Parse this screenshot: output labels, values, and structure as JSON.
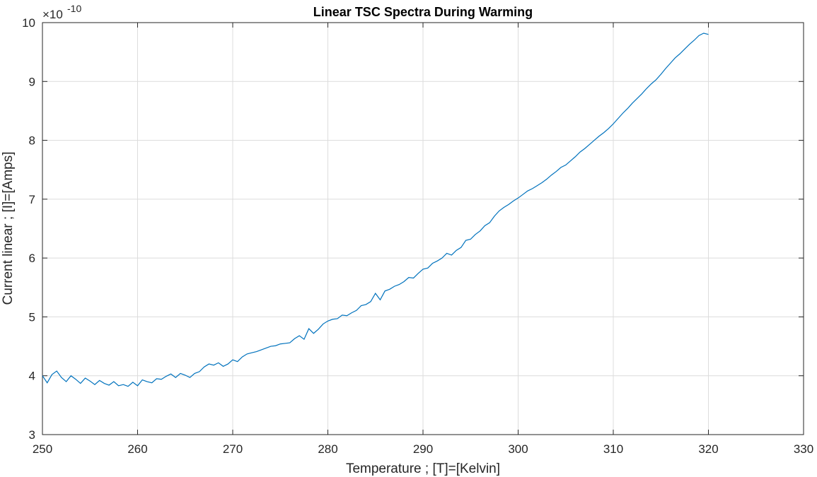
{
  "chart_data": {
    "type": "line",
    "title": "Linear TSC Spectra During Warming",
    "xlabel": "Temperature ; [T]=[Kelvin]",
    "ylabel": "Current linear ; [I]=[Amps]",
    "exponent_base": "×10",
    "exponent_power": "-10",
    "xlim": [
      250,
      330
    ],
    "ylim": [
      3,
      10
    ],
    "xticks": [
      "250",
      "260",
      "270",
      "280",
      "290",
      "300",
      "310",
      "320",
      "330"
    ],
    "yticks": [
      "3",
      "4",
      "5",
      "6",
      "7",
      "8",
      "9",
      "10"
    ],
    "grid": true,
    "line_color": "#0072BD",
    "series": [
      {
        "x": [
          250.0,
          250.5,
          251.0,
          251.5,
          252.0,
          252.5,
          253.0,
          253.5,
          254.0,
          254.5,
          255.0,
          255.5,
          256.0,
          256.5,
          257.0,
          257.5,
          258.0,
          258.5,
          259.0,
          259.5,
          260.0,
          260.5,
          261.0,
          261.5,
          262.0,
          262.5,
          263.0,
          263.5,
          264.0,
          264.5,
          265.0,
          265.5,
          266.0,
          266.5,
          267.0,
          267.5,
          268.0,
          268.5,
          269.0,
          269.5,
          270.0,
          270.5,
          271.0,
          271.5,
          272.0,
          272.5,
          273.0,
          273.5,
          274.0,
          274.5,
          275.0,
          275.5,
          276.0,
          276.5,
          277.0,
          277.5,
          278.0,
          278.5,
          279.0,
          279.5,
          280.0,
          280.5,
          281.0,
          281.5,
          282.0,
          282.5,
          283.0,
          283.5,
          284.0,
          284.5,
          285.0,
          285.5,
          286.0,
          286.5,
          287.0,
          287.5,
          288.0,
          288.5,
          289.0,
          289.5,
          290.0,
          290.5,
          291.0,
          291.5,
          292.0,
          292.5,
          293.0,
          293.5,
          294.0,
          294.5,
          295.0,
          295.5,
          296.0,
          296.5,
          297.0,
          297.5,
          298.0,
          298.5,
          299.0,
          299.5,
          300.0,
          300.5,
          301.0,
          301.5,
          302.0,
          302.5,
          303.0,
          303.5,
          304.0,
          304.5,
          305.0,
          305.5,
          306.0,
          306.5,
          307.0,
          307.5,
          308.0,
          308.5,
          309.0,
          309.5,
          310.0,
          310.5,
          311.0,
          311.5,
          312.0,
          312.5,
          313.0,
          313.5,
          314.0,
          314.5,
          315.0,
          315.5,
          316.0,
          316.5,
          317.0,
          317.5,
          318.0,
          318.5,
          319.0,
          319.5,
          320.0
        ],
        "y": [
          4.0,
          3.88,
          4.02,
          4.08,
          3.97,
          3.9,
          4.0,
          3.94,
          3.87,
          3.96,
          3.91,
          3.85,
          3.92,
          3.87,
          3.84,
          3.9,
          3.83,
          3.85,
          3.82,
          3.89,
          3.83,
          3.93,
          3.9,
          3.88,
          3.95,
          3.94,
          3.99,
          4.03,
          3.97,
          4.04,
          4.01,
          3.97,
          4.04,
          4.07,
          4.15,
          4.2,
          4.18,
          4.22,
          4.16,
          4.2,
          4.27,
          4.24,
          4.32,
          4.37,
          4.39,
          4.41,
          4.44,
          4.47,
          4.5,
          4.51,
          4.54,
          4.55,
          4.56,
          4.63,
          4.68,
          4.62,
          4.8,
          4.72,
          4.79,
          4.88,
          4.93,
          4.96,
          4.97,
          5.03,
          5.02,
          5.07,
          5.11,
          5.19,
          5.21,
          5.26,
          5.4,
          5.29,
          5.44,
          5.47,
          5.52,
          5.55,
          5.6,
          5.67,
          5.66,
          5.74,
          5.81,
          5.83,
          5.91,
          5.95,
          6.0,
          6.08,
          6.05,
          6.13,
          6.18,
          6.3,
          6.32,
          6.4,
          6.46,
          6.55,
          6.6,
          6.71,
          6.8,
          6.86,
          6.91,
          6.97,
          7.02,
          7.08,
          7.14,
          7.18,
          7.23,
          7.28,
          7.34,
          7.41,
          7.47,
          7.54,
          7.58,
          7.65,
          7.72,
          7.8,
          7.86,
          7.93,
          8.0,
          8.07,
          8.13,
          8.2,
          8.28,
          8.37,
          8.46,
          8.54,
          8.63,
          8.71,
          8.79,
          8.88,
          8.96,
          9.03,
          9.12,
          9.22,
          9.31,
          9.4,
          9.47,
          9.55,
          9.63,
          9.7,
          9.78,
          9.82,
          9.8
        ]
      }
    ]
  }
}
